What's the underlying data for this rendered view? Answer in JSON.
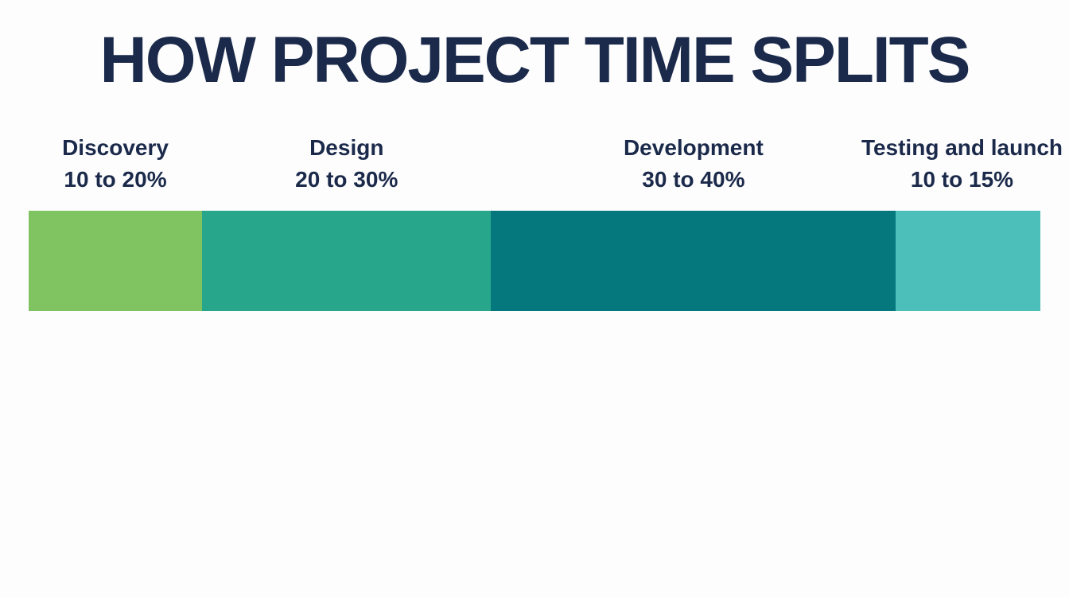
{
  "title": "HOW PROJECT TIME SPLITS",
  "chart_data": {
    "type": "bar",
    "orientation": "horizontal-stacked",
    "title": "HOW PROJECT TIME SPLITS",
    "segments": [
      {
        "name": "Discovery",
        "range_label": "10 to 20%",
        "range": [
          10,
          20
        ],
        "color": "#80c462"
      },
      {
        "name": "Design",
        "range_label": "20 to 30%",
        "range": [
          20,
          30
        ],
        "color": "#28a68c"
      },
      {
        "name": "Development",
        "range_label": "30 to 40%",
        "range": [
          30,
          40
        ],
        "color": "#05787e"
      },
      {
        "name": "Testing and launch",
        "range_label": "10 to 15%",
        "range": [
          10,
          15
        ],
        "color": "#4dbfbb"
      }
    ],
    "legend": "none",
    "grid": false
  }
}
